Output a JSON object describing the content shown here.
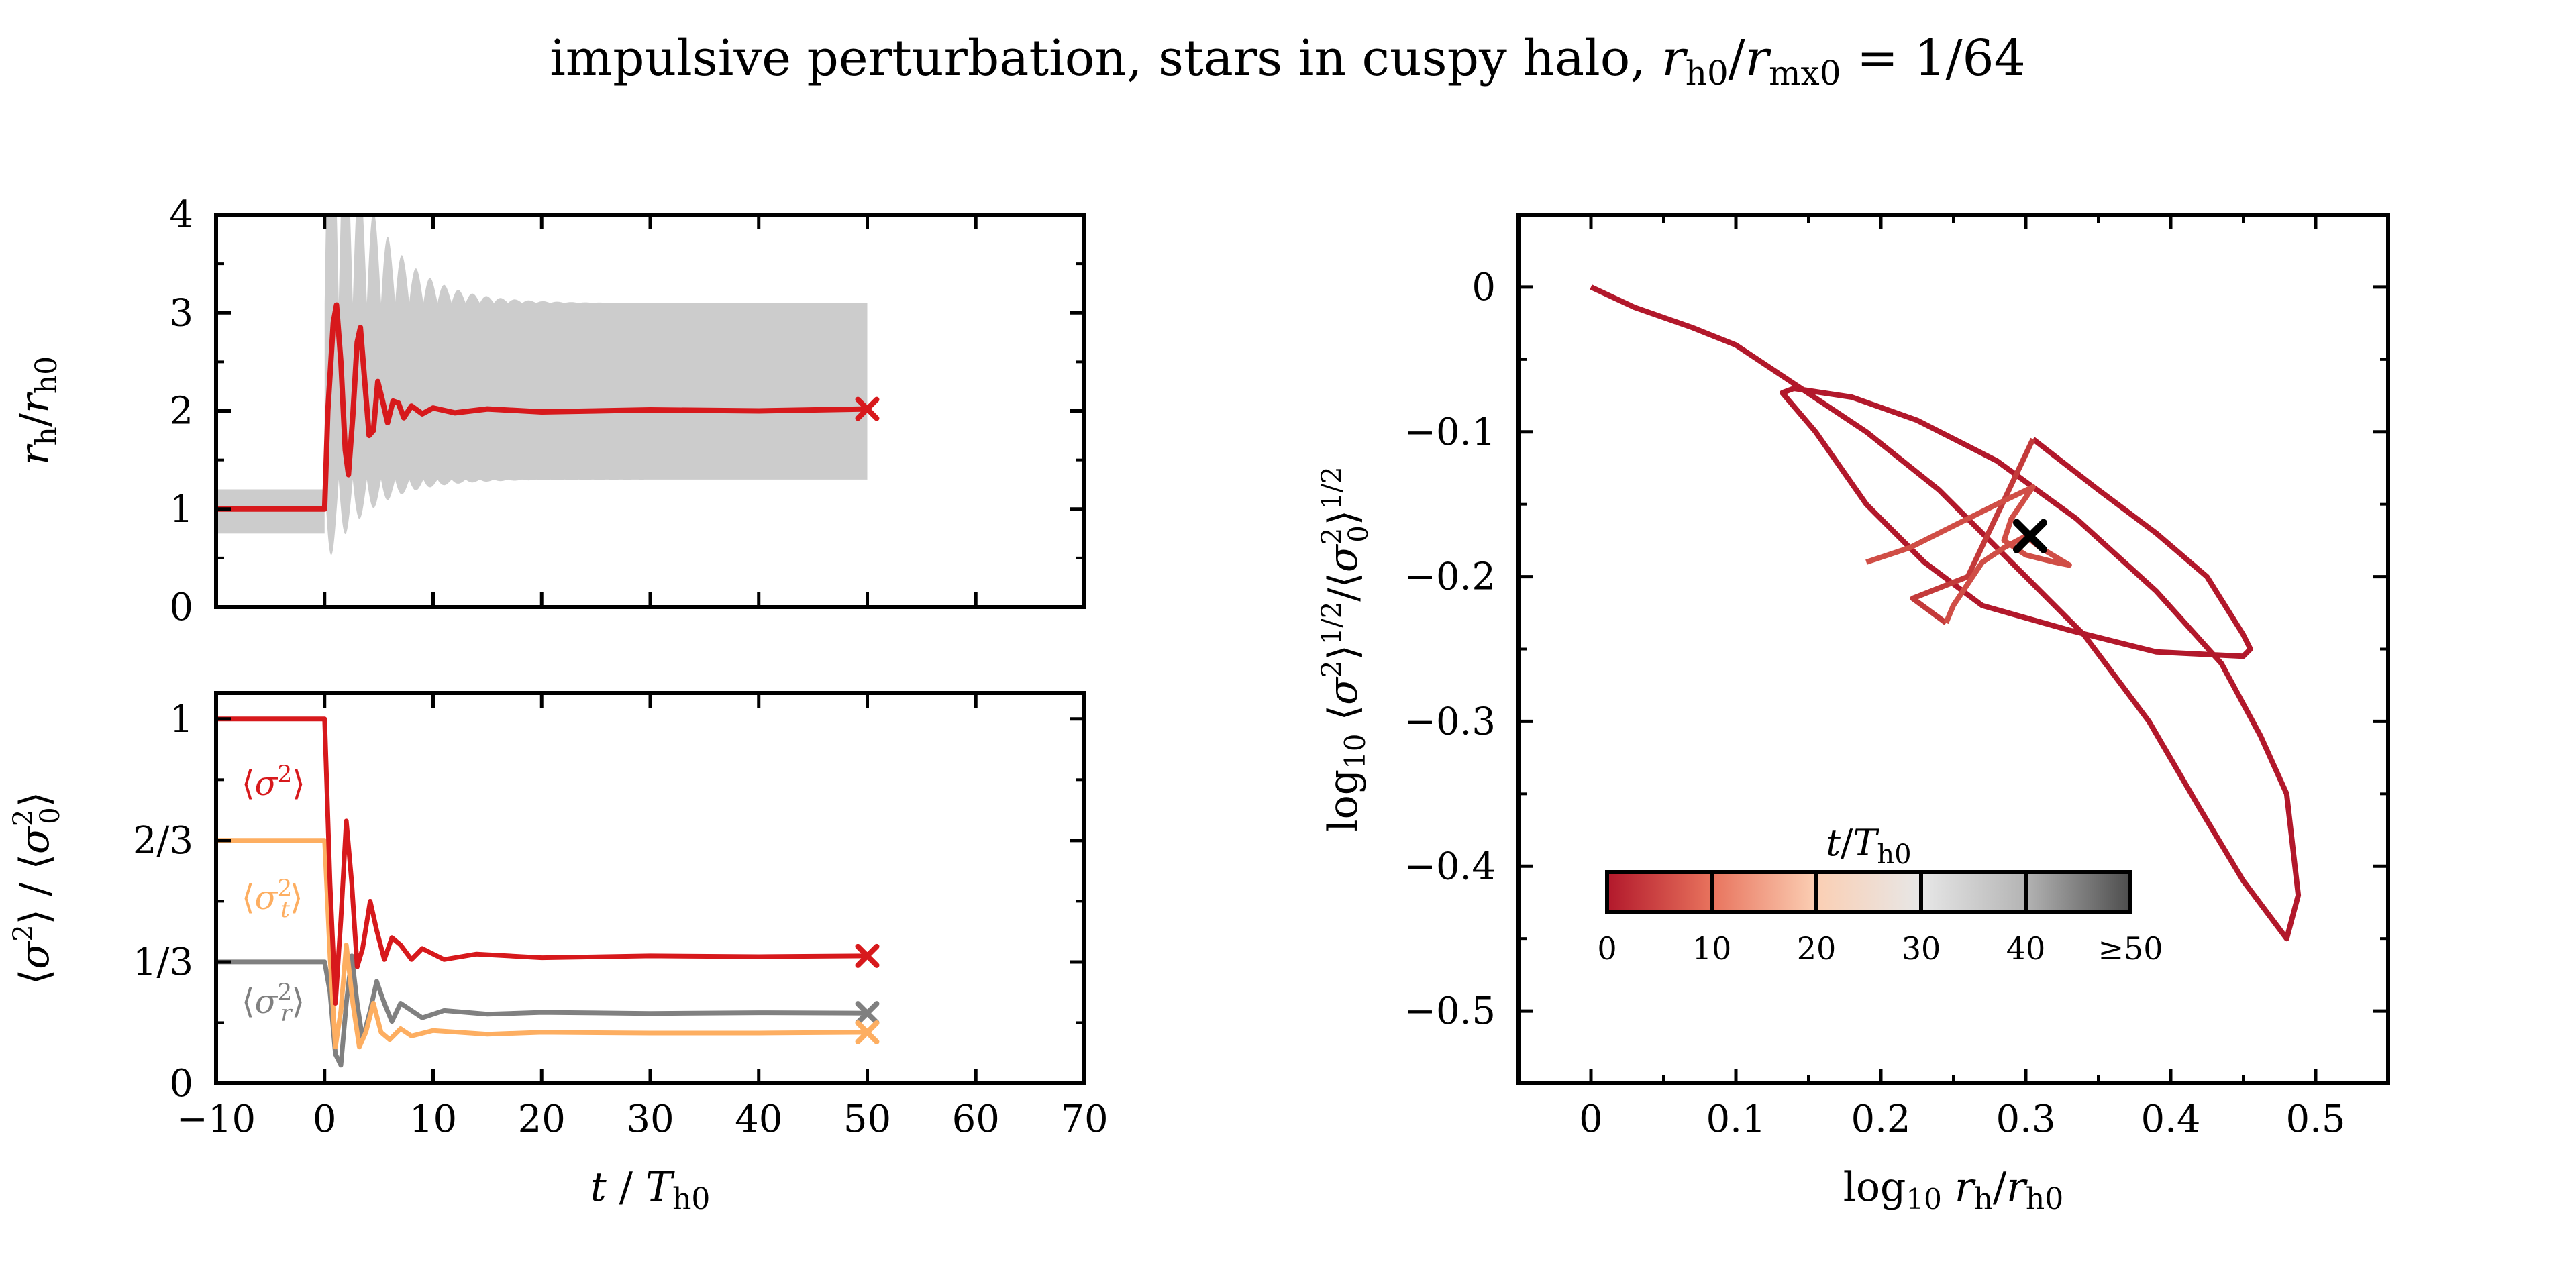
{
  "title": {
    "text": "impulsive perturbation, stars in cuspy halo, ",
    "math": "r_h0/r_mx0 = 1/64"
  },
  "colors": {
    "red": "#d7191c",
    "orange": "#fdae61",
    "gray": "#808080",
    "band": "#cccccc",
    "final_marker_right": "#000000"
  },
  "chart_data": [
    {
      "id": "top-left",
      "type": "line",
      "xlim": [
        -10,
        70
      ],
      "ylim": [
        0,
        4
      ],
      "xticks": [
        -10,
        0,
        10,
        20,
        30,
        40,
        50,
        60,
        70
      ],
      "yticks": [
        0,
        1,
        2,
        3,
        4
      ],
      "ytick_labels": [
        "0",
        "1",
        "2",
        "3",
        "4"
      ],
      "ylabel": "r_h / r_h0",
      "band": {
        "pre": {
          "x": [
            -10,
            0
          ],
          "lower": 0.75,
          "upper": 1.2
        },
        "post_x_end": 50,
        "post_lower_final": 1.3,
        "post_upper_final": 3.1,
        "transient_peak_upper": 4.0,
        "transient_min_lower": 0.4
      },
      "series": [
        {
          "points": [
            [
              -10,
              1.0
            ],
            [
              0,
              1.0
            ],
            [
              0.3,
              2.0
            ],
            [
              0.8,
              2.9
            ],
            [
              1.1,
              3.08
            ],
            [
              1.5,
              2.5
            ],
            [
              1.9,
              1.6
            ],
            [
              2.2,
              1.35
            ],
            [
              2.6,
              1.95
            ],
            [
              3.0,
              2.7
            ],
            [
              3.3,
              2.85
            ],
            [
              3.7,
              2.3
            ],
            [
              4.1,
              1.75
            ],
            [
              4.5,
              1.8
            ],
            [
              4.9,
              2.3
            ],
            [
              5.3,
              2.12
            ],
            [
              5.8,
              1.88
            ],
            [
              6.3,
              2.1
            ],
            [
              6.8,
              2.08
            ],
            [
              7.3,
              1.93
            ],
            [
              8.0,
              2.05
            ],
            [
              9.0,
              1.97
            ],
            [
              10,
              2.03
            ],
            [
              12,
              1.98
            ],
            [
              15,
              2.02
            ],
            [
              20,
              1.99
            ],
            [
              30,
              2.01
            ],
            [
              40,
              2.0
            ],
            [
              50,
              2.02
            ]
          ],
          "final_marker": [
            50,
            2.02
          ]
        }
      ]
    },
    {
      "id": "bottom-left",
      "type": "line",
      "xlim": [
        -10,
        70
      ],
      "ylim": [
        0,
        1.0714
      ],
      "xticks": [
        -10,
        0,
        10,
        20,
        30,
        40,
        50,
        60,
        70
      ],
      "xtick_labels": [
        "−10",
        "0",
        "10",
        "20",
        "30",
        "40",
        "50",
        "60",
        "70"
      ],
      "yticks": [
        0,
        0.3333,
        0.6667,
        1.0
      ],
      "ytick_labels": [
        "0",
        "1/3",
        "2/3",
        "1"
      ],
      "xlabel": "t / T_h0",
      "ylabel": "⟨σ²⟩ / ⟨σ₀²⟩",
      "series": [
        {
          "name": "⟨σ²⟩",
          "points": [
            [
              -10,
              1.0
            ],
            [
              0,
              1.0
            ],
            [
              0.5,
              0.55
            ],
            [
              1.0,
              0.22
            ],
            [
              1.5,
              0.45
            ],
            [
              2.0,
              0.72
            ],
            [
              2.5,
              0.55
            ],
            [
              3.0,
              0.32
            ],
            [
              3.5,
              0.37
            ],
            [
              4.2,
              0.5
            ],
            [
              4.8,
              0.42
            ],
            [
              5.5,
              0.34
            ],
            [
              6.2,
              0.4
            ],
            [
              7.0,
              0.38
            ],
            [
              8.0,
              0.34
            ],
            [
              9.0,
              0.37
            ],
            [
              11,
              0.34
            ],
            [
              14,
              0.355
            ],
            [
              20,
              0.345
            ],
            [
              30,
              0.35
            ],
            [
              40,
              0.348
            ],
            [
              50,
              0.35
            ]
          ],
          "final_marker": [
            50,
            0.35
          ]
        },
        {
          "name": "⟨σ_t²⟩",
          "points": [
            [
              -10,
              0.6667
            ],
            [
              0,
              0.6667
            ],
            [
              0.5,
              0.35
            ],
            [
              1.0,
              0.1
            ],
            [
              1.5,
              0.2
            ],
            [
              2.0,
              0.38
            ],
            [
              2.6,
              0.22
            ],
            [
              3.2,
              0.1
            ],
            [
              3.8,
              0.14
            ],
            [
              4.5,
              0.22
            ],
            [
              5.2,
              0.14
            ],
            [
              6.0,
              0.12
            ],
            [
              7.0,
              0.15
            ],
            [
              8.0,
              0.13
            ],
            [
              10,
              0.145
            ],
            [
              15,
              0.135
            ],
            [
              20,
              0.14
            ],
            [
              30,
              0.138
            ],
            [
              40,
              0.138
            ],
            [
              50,
              0.14
            ]
          ],
          "final_marker": [
            50,
            0.14
          ]
        },
        {
          "name": "⟨σ_r²⟩",
          "points": [
            [
              -10,
              0.3333
            ],
            [
              0,
              0.3333
            ],
            [
              0.5,
              0.25
            ],
            [
              1.0,
              0.08
            ],
            [
              1.5,
              0.05
            ],
            [
              2.0,
              0.22
            ],
            [
              2.5,
              0.35
            ],
            [
              3.0,
              0.22
            ],
            [
              3.5,
              0.12
            ],
            [
              4.2,
              0.2
            ],
            [
              4.8,
              0.28
            ],
            [
              5.5,
              0.22
            ],
            [
              6.2,
              0.17
            ],
            [
              7.0,
              0.22
            ],
            [
              8.0,
              0.2
            ],
            [
              9.0,
              0.18
            ],
            [
              11,
              0.2
            ],
            [
              15,
              0.19
            ],
            [
              20,
              0.195
            ],
            [
              30,
              0.192
            ],
            [
              40,
              0.194
            ],
            [
              50,
              0.193
            ]
          ],
          "final_marker": [
            50,
            0.193
          ]
        }
      ]
    },
    {
      "id": "right",
      "type": "line",
      "xlim": [
        -0.05,
        0.55
      ],
      "ylim": [
        -0.55,
        0.05
      ],
      "xticks": [
        0,
        0.1,
        0.2,
        0.3,
        0.4,
        0.5
      ],
      "xtick_labels": [
        "0",
        "0.1",
        "0.2",
        "0.3",
        "0.4",
        "0.5"
      ],
      "yticks": [
        0,
        -0.1,
        -0.2,
        -0.3,
        -0.4,
        -0.5
      ],
      "ytick_labels": [
        "0",
        "−0.1",
        "−0.2",
        "−0.3",
        "−0.4",
        "−0.5"
      ],
      "xlabel": "log₁₀ r_h / r_h0",
      "ylabel": "log₁₀ ⟨σ²⟩^{1/2} / ⟨σ₀²⟩^{1/2}",
      "series": [
        {
          "points": [
            [
              0,
              0
            ],
            [
              0.03,
              -0.014
            ],
            [
              0.07,
              -0.028
            ],
            [
              0.1,
              -0.04
            ],
            [
              0.145,
              -0.07
            ],
            [
              0.19,
              -0.1
            ],
            [
              0.24,
              -0.14
            ],
            [
              0.29,
              -0.19
            ],
            [
              0.34,
              -0.24
            ],
            [
              0.385,
              -0.3
            ],
            [
              0.42,
              -0.36
            ],
            [
              0.45,
              -0.41
            ],
            [
              0.48,
              -0.45
            ],
            [
              0.488,
              -0.42
            ],
            [
              0.48,
              -0.35
            ],
            [
              0.462,
              -0.31
            ],
            [
              0.435,
              -0.26
            ],
            [
              0.39,
              -0.21
            ],
            [
              0.335,
              -0.16
            ],
            [
              0.28,
              -0.12
            ],
            [
              0.225,
              -0.092
            ],
            [
              0.18,
              -0.076
            ],
            [
              0.14,
              -0.07
            ],
            [
              0.132,
              -0.073
            ],
            [
              0.155,
              -0.1
            ],
            [
              0.19,
              -0.15
            ],
            [
              0.23,
              -0.19
            ],
            [
              0.27,
              -0.22
            ],
            [
              0.33,
              -0.237
            ],
            [
              0.39,
              -0.252
            ],
            [
              0.45,
              -0.255
            ],
            [
              0.455,
              -0.25
            ],
            [
              0.45,
              -0.24
            ],
            [
              0.425,
              -0.2
            ],
            [
              0.39,
              -0.17
            ],
            [
              0.35,
              -0.14
            ],
            [
              0.305,
              -0.105
            ]
          ],
          "second_leg": [
            [
              0.305,
              -0.105
            ],
            [
              0.26,
              -0.2
            ],
            [
              0.222,
              -0.215
            ],
            [
              0.245,
              -0.232
            ]
          ],
          "inner_loop": [
            [
              0.19,
              -0.19
            ],
            [
              0.22,
              -0.18
            ],
            [
              0.25,
              -0.165
            ],
            [
              0.28,
              -0.15
            ],
            [
              0.305,
              -0.138
            ],
            [
              0.29,
              -0.16
            ],
            [
              0.285,
              -0.175
            ],
            [
              0.3,
              -0.185
            ],
            [
              0.32,
              -0.19
            ],
            [
              0.33,
              -0.192
            ],
            [
              0.31,
              -0.18
            ],
            [
              0.3,
              -0.172
            ],
            [
              0.285,
              -0.18
            ],
            [
              0.27,
              -0.19
            ],
            [
              0.25,
              -0.22
            ],
            [
              0.245,
              -0.232
            ]
          ],
          "final_marker": [
            0.303,
            -0.172
          ]
        }
      ],
      "colorbar": {
        "label": "t / T_h0",
        "tick_labels": [
          "0",
          "10",
          "20",
          "30",
          "40",
          "≥50"
        ],
        "stops": [
          "#b2182b",
          "#e8735d",
          "#fbcfb4",
          "#e7e7e7",
          "#b4b4b4",
          "#4d4d4d"
        ]
      }
    }
  ]
}
